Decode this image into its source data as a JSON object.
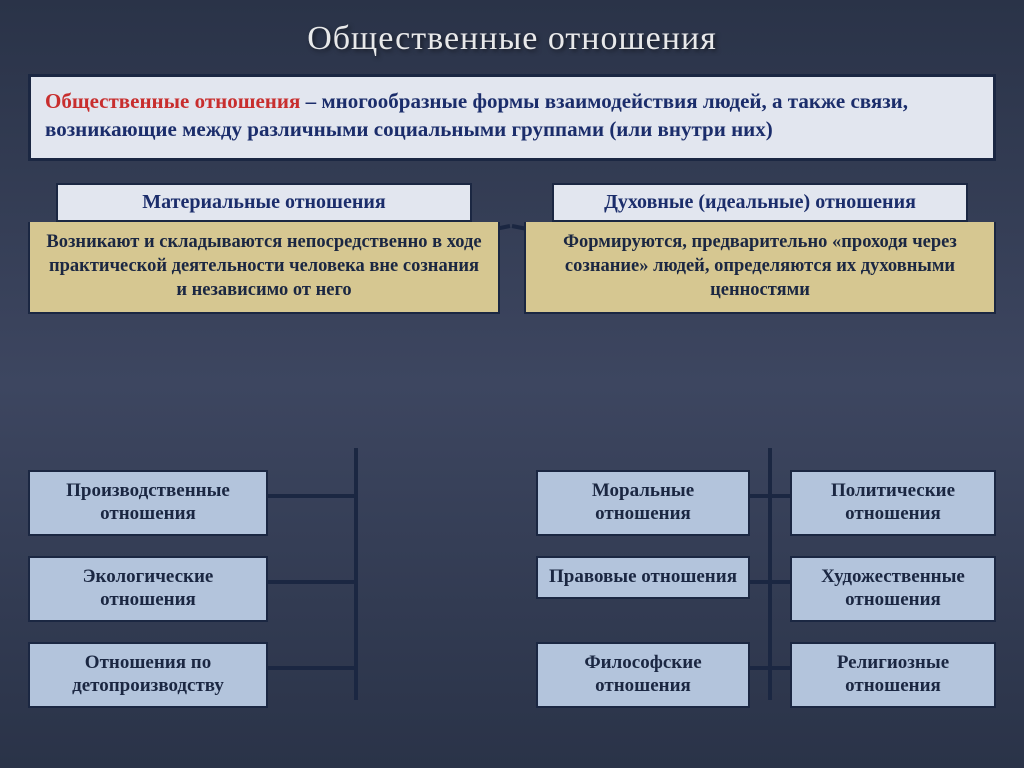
{
  "title": "Общественные отношения",
  "definition": {
    "term": "Общественные отношения",
    "body": " – многообразные формы взаимодействия людей, а также связи, возникающие между различными социальными группами (или внутри них)"
  },
  "left": {
    "head": "Материальные отношения",
    "desc": "Возникают и складываются непосредственно в ходе практической деятельности человека вне сознания и независимо от него",
    "leaves": [
      "Производственные отношения",
      "Экологические отношения",
      "Отношения по детопроизводству"
    ]
  },
  "right": {
    "head": "Духовные (идеальные) отношения",
    "desc": "Формируются, предварительно «проходя через сознание» людей, определяются их духовными ценностями",
    "leaves_a": [
      "Моральные отношения",
      "Правовые отношения",
      "Философские отношения"
    ],
    "leaves_b": [
      "Политические отношения",
      "Художественные отношения",
      "Религиозные отношения"
    ]
  },
  "colors": {
    "bg_top": "#2a3348",
    "pale": "#e2e6ef",
    "tan": "#d6c791",
    "leaf": "#b3c4dc",
    "border": "#1b2742",
    "term": "#c82e2e",
    "navy_text": "#1b2d6b",
    "connector": "#1b2742",
    "connector_w": 4
  },
  "lines": [
    [
      510,
      226,
      275,
      274
    ],
    [
      512,
      226,
      760,
      274
    ],
    [
      356,
      448,
      356,
      700
    ],
    [
      268,
      496,
      356,
      496
    ],
    [
      268,
      582,
      356,
      582
    ],
    [
      268,
      668,
      356,
      668
    ],
    [
      770,
      448,
      770,
      700
    ],
    [
      748,
      496,
      792,
      496
    ],
    [
      748,
      582,
      792,
      582
    ],
    [
      748,
      668,
      792,
      668
    ],
    [
      770,
      496,
      540,
      496
    ],
    [
      770,
      582,
      540,
      582
    ],
    [
      770,
      668,
      540,
      668
    ]
  ]
}
